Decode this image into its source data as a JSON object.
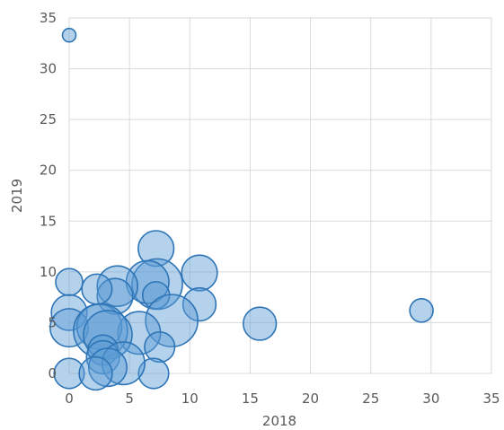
{
  "chart_data": {
    "type": "scatter",
    "subtype": "bubble",
    "title": "",
    "xlabel": "2018",
    "ylabel": "2019",
    "xlim": [
      0,
      35
    ],
    "ylim": [
      0,
      35
    ],
    "x_ticks": [
      "0",
      "5",
      "10",
      "15",
      "20",
      "25",
      "30",
      "35"
    ],
    "y_ticks": [
      "0",
      "5",
      "10",
      "15",
      "20",
      "25",
      "30",
      "35"
    ],
    "grid": true,
    "legend": "none",
    "colors": {
      "fill": "#5b9bd5",
      "stroke": "#2e75b6",
      "grid": "#d9d9d9",
      "text": "#595959"
    },
    "points": [
      {
        "x": 0,
        "y": 33.3,
        "size": 1
      },
      {
        "x": 29.2,
        "y": 6.2,
        "size": 3
      },
      {
        "x": 15.8,
        "y": 4.9,
        "size": 6
      },
      {
        "x": 7.2,
        "y": 12.3,
        "size": 7
      },
      {
        "x": 10.8,
        "y": 9.9,
        "size": 7
      },
      {
        "x": 10.8,
        "y": 6.8,
        "size": 6
      },
      {
        "x": 0,
        "y": 9.0,
        "size": 4
      },
      {
        "x": 7.3,
        "y": 8.8,
        "size": 14
      },
      {
        "x": 6.5,
        "y": 9.0,
        "size": 10
      },
      {
        "x": 7.2,
        "y": 7.7,
        "size": 4
      },
      {
        "x": 4.0,
        "y": 8.6,
        "size": 9
      },
      {
        "x": 3.8,
        "y": 7.6,
        "size": 7
      },
      {
        "x": 2.3,
        "y": 8.3,
        "size": 5
      },
      {
        "x": 8.5,
        "y": 5.2,
        "size": 15
      },
      {
        "x": 5.8,
        "y": 4.0,
        "size": 10
      },
      {
        "x": 7.5,
        "y": 2.6,
        "size": 5
      },
      {
        "x": 7.0,
        "y": 0,
        "size": 5
      },
      {
        "x": 0,
        "y": 6.0,
        "size": 7
      },
      {
        "x": 0,
        "y": 4.5,
        "size": 8
      },
      {
        "x": 0,
        "y": 0,
        "size": 5
      },
      {
        "x": 2.5,
        "y": 4.6,
        "size": 11
      },
      {
        "x": 2.6,
        "y": 4.2,
        "size": 16
      },
      {
        "x": 3.2,
        "y": 3.8,
        "size": 13
      },
      {
        "x": 2.8,
        "y": 2.3,
        "size": 5
      },
      {
        "x": 2.8,
        "y": 1.6,
        "size": 6
      },
      {
        "x": 4.5,
        "y": 1.0,
        "size": 10
      },
      {
        "x": 3.2,
        "y": 0.6,
        "size": 8
      },
      {
        "x": 2.2,
        "y": 0,
        "size": 6
      }
    ]
  }
}
